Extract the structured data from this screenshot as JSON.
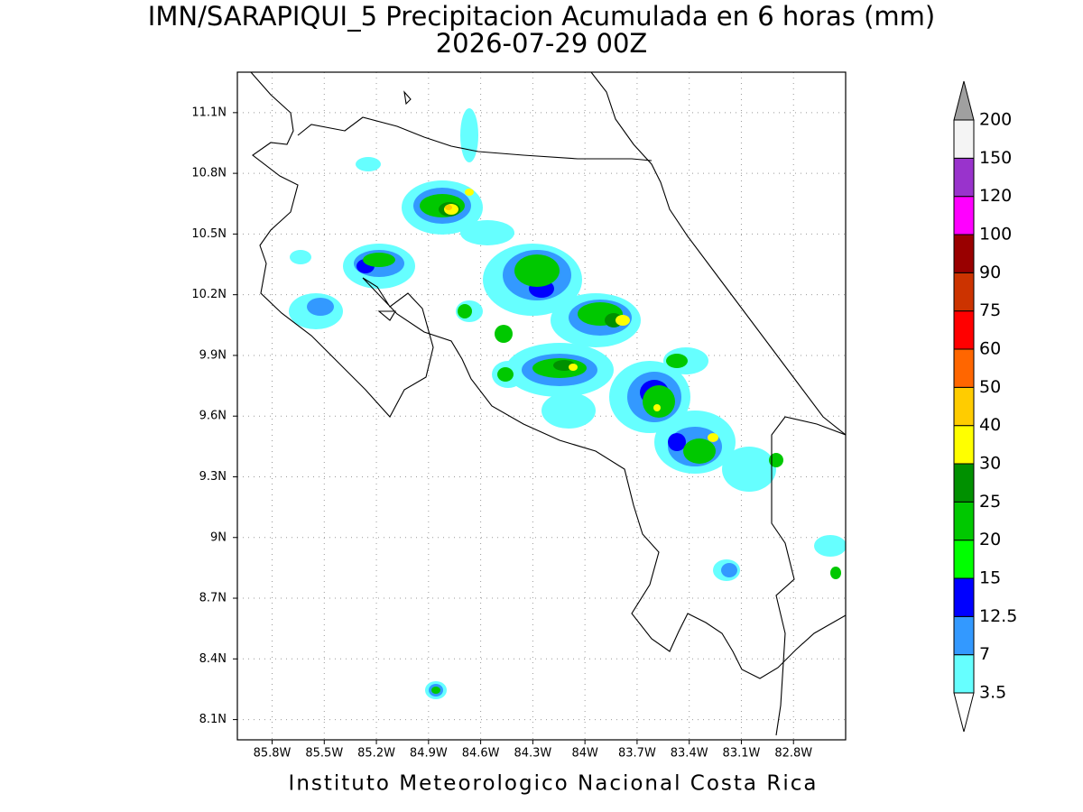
{
  "title": "IMN/SARAPIQUI_5 Precipitacion Acumulada en 6 horas (mm)",
  "subtitle": "2026-07-29 00Z",
  "footer": "Instituto Meteorologico Nacional Costa Rica",
  "map": {
    "xlim": [
      -86.0,
      -82.5
    ],
    "ylim": [
      8.0,
      11.3
    ],
    "grid": true,
    "xticks": [
      {
        "value": -85.8,
        "label": "85.8W"
      },
      {
        "value": -85.5,
        "label": "85.5W"
      },
      {
        "value": -85.2,
        "label": "85.2W"
      },
      {
        "value": -84.9,
        "label": "84.9W"
      },
      {
        "value": -84.6,
        "label": "84.6W"
      },
      {
        "value": -84.3,
        "label": "84.3W"
      },
      {
        "value": -84.0,
        "label": "84W"
      },
      {
        "value": -83.7,
        "label": "83.7W"
      },
      {
        "value": -83.4,
        "label": "83.4W"
      },
      {
        "value": -83.1,
        "label": "83.1W"
      },
      {
        "value": -82.8,
        "label": "82.8W"
      }
    ],
    "yticks": [
      {
        "value": 8.1,
        "label": "8.1N"
      },
      {
        "value": 8.4,
        "label": "8.4N"
      },
      {
        "value": 8.7,
        "label": "8.7N"
      },
      {
        "value": 9.0,
        "label": "9N"
      },
      {
        "value": 9.3,
        "label": "9.3N"
      },
      {
        "value": 9.6,
        "label": "9.6N"
      },
      {
        "value": 9.9,
        "label": "9.9N"
      },
      {
        "value": 10.2,
        "label": "10.2N"
      },
      {
        "value": 10.5,
        "label": "10.5N"
      },
      {
        "value": 10.8,
        "label": "10.8N"
      },
      {
        "value": 11.1,
        "label": "11.1N"
      }
    ]
  },
  "colorbar": {
    "levels": [
      3.5,
      7,
      12.5,
      15,
      20,
      25,
      30,
      40,
      50,
      60,
      75,
      90,
      100,
      120,
      150,
      200
    ],
    "colors": [
      "#66ffff",
      "#3399ff",
      "#0000ff",
      "#00ff00",
      "#00c800",
      "#009000",
      "#ffff00",
      "#ffcc00",
      "#ff6600",
      "#ff0000",
      "#cc3300",
      "#990000",
      "#ff00ff",
      "#9933cc",
      "#f4f4f4"
    ],
    "under_color": "#ffffff",
    "over_color": "#a0a0a0"
  }
}
